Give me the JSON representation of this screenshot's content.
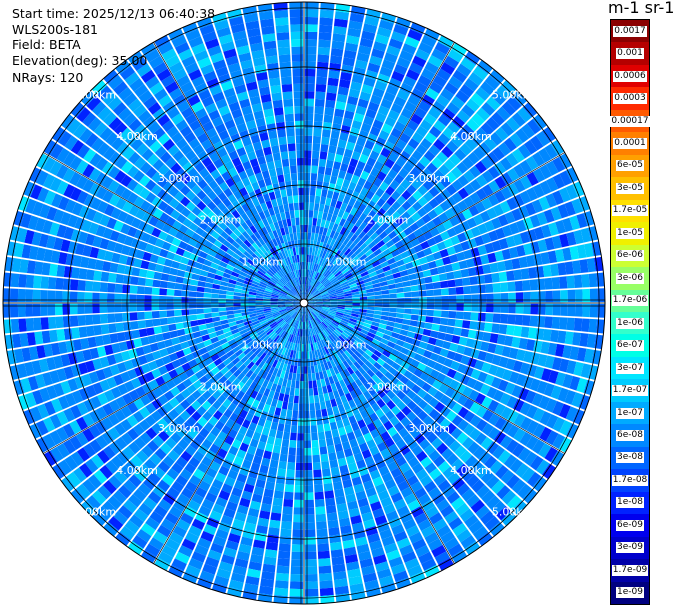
{
  "header": {
    "start_time": "Start time: 2025/12/13 06:40:38",
    "instrument": "WLS200s-181",
    "field": "Field: BETA",
    "elevation": "Elevation(deg): 35.00",
    "nrays": "NRays: 120"
  },
  "colorbar": {
    "title": "m-1 sr-1",
    "labels": [
      "0.0017",
      "0.001",
      "0.0006",
      "0.0003",
      "0.00017",
      "0.0001",
      "6e-05",
      "3e-05",
      "1.7e-05",
      "1e-05",
      "6e-06",
      "3e-06",
      "1.7e-06",
      "1e-06",
      "6e-07",
      "3e-07",
      "1.7e-07",
      "1e-07",
      "6e-08",
      "3e-08",
      "1.7e-08",
      "1e-08",
      "6e-09",
      "3e-09",
      "1.7e-09",
      "1e-09"
    ],
    "colors": [
      "#8b0000",
      "#b50000",
      "#e00000",
      "#ff2a00",
      "#ff5a00",
      "#ff8000",
      "#ffa000",
      "#ffc000",
      "#ffe000",
      "#f0f000",
      "#ccff33",
      "#99ff66",
      "#66ff99",
      "#33ffcc",
      "#00ffe6",
      "#00e6ff",
      "#00ccff",
      "#00aaff",
      "#0088ff",
      "#0066ff",
      "#0044ff",
      "#0022ff",
      "#0000ee",
      "#0000cc",
      "#0000a8",
      "#000080"
    ]
  },
  "chart_data": {
    "type": "polar-ppi",
    "field": "BETA",
    "elevation_deg": 35.0,
    "n_rays": 120,
    "range_rings_km": [
      1,
      2,
      3,
      4,
      5
    ],
    "ring_labels": [
      "1.00km",
      "2.00km",
      "3.00km",
      "4.00km",
      "5.00km"
    ],
    "max_range_km": 5.1,
    "azimuth_lines_deg": [
      0,
      30,
      60,
      90,
      120,
      150,
      180,
      210,
      240,
      270,
      300,
      330
    ],
    "label_azimuths_deg": [
      45,
      135,
      225,
      315
    ],
    "dominant_colors": [
      "#0088ff",
      "#0066ff",
      "#00aaff",
      "#0022ff",
      "#00ccff",
      "#00e6ff"
    ]
  }
}
